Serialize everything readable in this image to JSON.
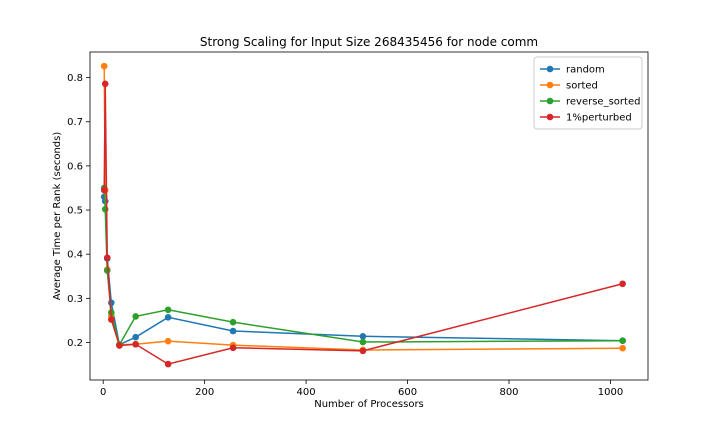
{
  "chart_data": {
    "type": "line",
    "title": "Strong Scaling for Input Size 268435456 for node comm",
    "xlabel": "Number of Processors",
    "ylabel": "Average Time per Rank (seconds)",
    "xlim": [
      -26.0,
      1074.0
    ],
    "ylim": [
      0.115,
      0.858
    ],
    "xticks": [
      0,
      200,
      400,
      600,
      800,
      1000
    ],
    "yticks": [
      0.2,
      0.3,
      0.4,
      0.5,
      0.6,
      0.7,
      0.8
    ],
    "grid": false,
    "legend_position": "top-right",
    "x": [
      2,
      4,
      8,
      16,
      32,
      64,
      128,
      256,
      512,
      1024
    ],
    "series": [
      {
        "name": "random",
        "color": "#1f77b4",
        "values": [
          0.53,
          0.52,
          0.39,
          0.29,
          0.195,
          0.212,
          0.257,
          0.226,
          0.214,
          0.204
        ]
      },
      {
        "name": "sorted",
        "color": "#ff7f0e",
        "values": [
          0.826,
          0.545,
          0.365,
          0.26,
          0.195,
          0.196,
          0.203,
          0.194,
          0.183,
          0.187
        ]
      },
      {
        "name": "reverse_sorted",
        "color": "#2ca02c",
        "values": [
          0.55,
          0.502,
          0.363,
          0.268,
          0.195,
          0.259,
          0.274,
          0.246,
          0.201,
          0.204
        ]
      },
      {
        "name": "1%perturbed",
        "color": "#d62728",
        "values": [
          0.545,
          0.786,
          0.392,
          0.252,
          0.193,
          0.196,
          0.151,
          0.188,
          0.181,
          0.333
        ]
      }
    ]
  }
}
